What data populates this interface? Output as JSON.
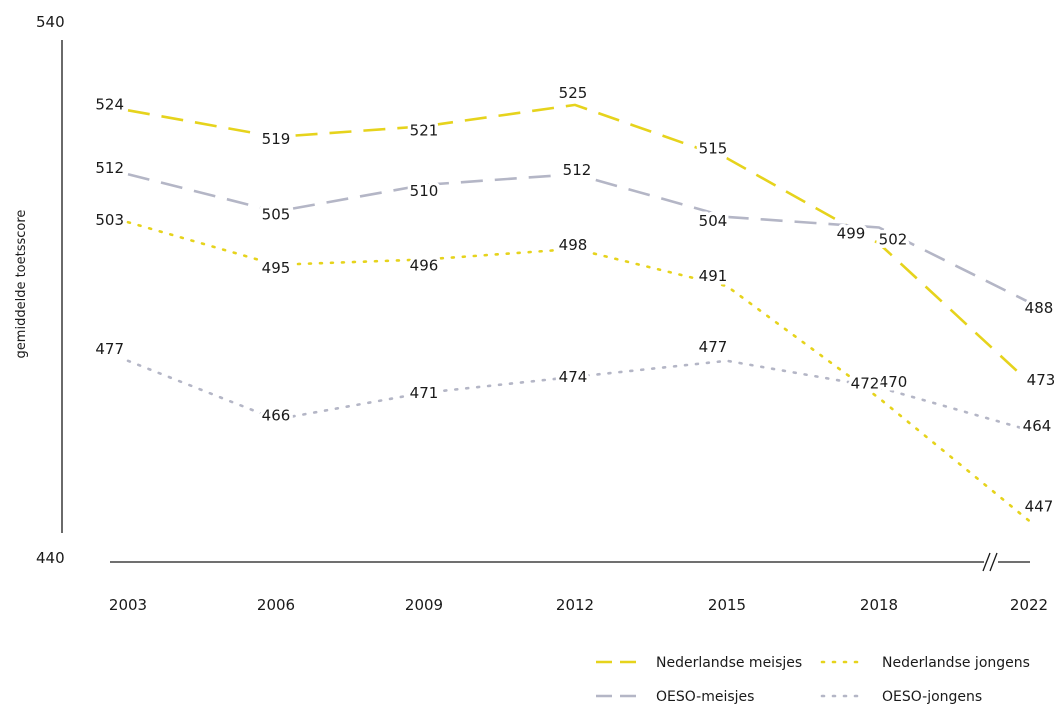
{
  "chart_data": {
    "type": "line",
    "title": "",
    "xlabel": "",
    "ylabel": "gemiddelde toetsscore",
    "ylim": [
      440,
      540
    ],
    "y_ticks": [
      "540",
      "440"
    ],
    "categories": [
      "2003",
      "2006",
      "2009",
      "2012",
      "2015",
      "2018",
      "2022"
    ],
    "axis_break": "//",
    "legend_position": "bottom-right",
    "grid": false,
    "series": [
      {
        "name": "Nederlandse meisjes",
        "color": "#e6d31c",
        "dash": "dashed",
        "values": [
          524,
          519,
          521,
          525,
          515,
          499,
          473
        ],
        "labels": [
          "524",
          "519",
          "521",
          "525",
          "515",
          "499",
          "473"
        ]
      },
      {
        "name": "OESO-meisjes",
        "color": "#b4b6c6",
        "dash": "dashed",
        "values": [
          512,
          505,
          510,
          512,
          504,
          502,
          488
        ],
        "labels": [
          "512",
          "505",
          "510",
          "512",
          "504",
          "502",
          "488"
        ]
      },
      {
        "name": "Nederlandse jongens",
        "color": "#e6d31c",
        "dash": "dotted",
        "values": [
          503,
          495,
          496,
          498,
          491,
          470,
          447
        ],
        "labels": [
          "503",
          "495",
          "496",
          "498",
          "491",
          "470",
          "447"
        ]
      },
      {
        "name": "OESO-jongens",
        "color": "#b4b6c6",
        "dash": "dotted",
        "values": [
          477,
          466,
          471,
          474,
          477,
          472,
          464
        ],
        "labels": [
          "477",
          "466",
          "471",
          "474",
          "477",
          "472",
          "464"
        ]
      }
    ]
  }
}
